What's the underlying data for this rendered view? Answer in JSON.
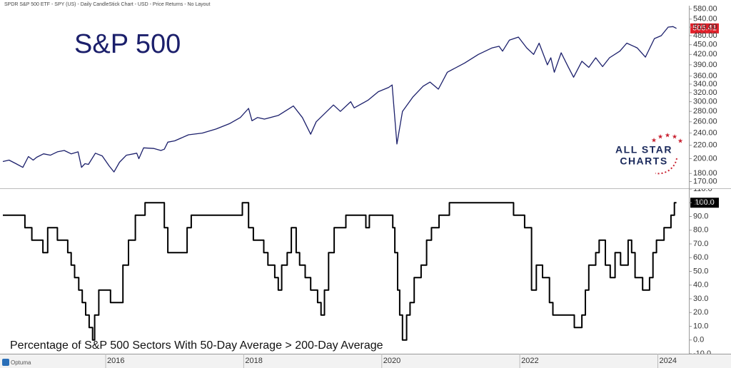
{
  "header": {
    "title": "SPDR S&P 500 ETF - SPY (US) - Daily CandleStick Chart - USD - Price Returns - No Layout"
  },
  "logo": {
    "line1": "ALL STAR",
    "line2": "CHARTS"
  },
  "footer": {
    "brand": "Optuma"
  },
  "chart_data": [
    {
      "type": "line",
      "annotation": "S&P 500",
      "log_scale": true,
      "color": "#1b1f6b",
      "xlim": [
        2014.51,
        2024.45
      ],
      "ylim": [
        162,
        594
      ],
      "yticks": [
        {
          "value": 170,
          "label": "170.00"
        },
        {
          "value": 180,
          "label": "180.00"
        },
        {
          "value": 200,
          "label": "200.00"
        },
        {
          "value": 220,
          "label": "220.00"
        },
        {
          "value": 240,
          "label": "240.00"
        },
        {
          "value": 260,
          "label": "260.00"
        },
        {
          "value": 280,
          "label": "280.00"
        },
        {
          "value": 300,
          "label": "300.00"
        },
        {
          "value": 320,
          "label": "320.00"
        },
        {
          "value": 340,
          "label": "340.00"
        },
        {
          "value": 360,
          "label": "360.00"
        },
        {
          "value": 390,
          "label": "390.00"
        },
        {
          "value": 420,
          "label": "420.00"
        },
        {
          "value": 450,
          "label": "450.00"
        },
        {
          "value": 480,
          "label": "480.00"
        },
        {
          "value": 510,
          "label": "510.00"
        },
        {
          "value": 540,
          "label": "540.00"
        },
        {
          "value": 580,
          "label": "580.00"
        }
      ],
      "x": [
        2014.51,
        2014.6,
        2014.7,
        2014.8,
        2014.88,
        2014.95,
        2015.0,
        2015.1,
        2015.2,
        2015.3,
        2015.4,
        2015.5,
        2015.6,
        2015.65,
        2015.7,
        2015.75,
        2015.85,
        2015.95,
        2016.05,
        2016.12,
        2016.2,
        2016.3,
        2016.45,
        2016.48,
        2016.55,
        2016.7,
        2016.8,
        2016.85,
        2016.9,
        2017.0,
        2017.2,
        2017.4,
        2017.6,
        2017.8,
        2017.95,
        2018.07,
        2018.12,
        2018.2,
        2018.3,
        2018.5,
        2018.72,
        2018.85,
        2018.97,
        2019.05,
        2019.3,
        2019.4,
        2019.55,
        2019.6,
        2019.8,
        2019.95,
        2020.1,
        2020.15,
        2020.22,
        2020.3,
        2020.45,
        2020.6,
        2020.7,
        2020.82,
        2020.95,
        2021.2,
        2021.4,
        2021.6,
        2021.7,
        2021.75,
        2021.85,
        2021.98,
        2022.1,
        2022.2,
        2022.28,
        2022.4,
        2022.45,
        2022.5,
        2022.6,
        2022.7,
        2022.78,
        2022.9,
        2023.0,
        2023.1,
        2023.2,
        2023.3,
        2023.45,
        2023.55,
        2023.7,
        2023.82,
        2023.95,
        2024.05,
        2024.15,
        2024.22,
        2024.27
      ],
      "values": [
        196,
        198,
        193,
        188,
        203,
        198,
        202,
        207,
        205,
        210,
        212,
        207,
        210,
        188,
        193,
        192,
        208,
        204,
        190,
        182,
        195,
        205,
        208,
        200,
        216,
        215,
        212,
        214,
        225,
        227,
        237,
        240,
        247,
        257,
        268,
        286,
        262,
        268,
        265,
        272,
        291,
        268,
        238,
        260,
        293,
        280,
        300,
        287,
        303,
        322,
        332,
        338,
        222,
        280,
        310,
        335,
        345,
        328,
        370,
        395,
        420,
        440,
        445,
        430,
        465,
        475,
        440,
        420,
        455,
        390,
        410,
        370,
        425,
        385,
        357,
        400,
        383,
        410,
        385,
        410,
        430,
        455,
        440,
        412,
        470,
        480,
        510,
        512,
        505.41
      ]
    },
    {
      "type": "step",
      "title": "Percentage of S&P 500 Sectors With 50-Day Average > 200-Day Average",
      "color": "#000000",
      "xlim": [
        2014.51,
        2024.45
      ],
      "ylim": [
        -10,
        110
      ],
      "xticks": [
        2016,
        2018,
        2020,
        2022,
        2024
      ],
      "yticks": [
        {
          "value": -10,
          "label": "-10.0"
        },
        {
          "value": 0,
          "label": "0.0"
        },
        {
          "value": 10,
          "label": "10.0"
        },
        {
          "value": 20,
          "label": "20.0"
        },
        {
          "value": 30,
          "label": "30.0"
        },
        {
          "value": 40,
          "label": "40.0"
        },
        {
          "value": 50,
          "label": "50.0"
        },
        {
          "value": 60,
          "label": "60.0"
        },
        {
          "value": 70,
          "label": "70.0"
        },
        {
          "value": 80,
          "label": "80.0"
        },
        {
          "value": 90,
          "label": "90.0"
        },
        {
          "value": 100,
          "label": "100.0"
        },
        {
          "value": 110,
          "label": "110.0"
        }
      ],
      "x": [
        2014.51,
        2014.83,
        2014.93,
        2015.09,
        2015.16,
        2015.3,
        2015.45,
        2015.5,
        2015.55,
        2015.61,
        2015.66,
        2015.71,
        2015.76,
        2015.81,
        2015.84,
        2015.9,
        2016.07,
        2016.25,
        2016.33,
        2016.43,
        2016.57,
        2016.85,
        2016.9,
        2017.18,
        2017.24,
        2017.98,
        2018.07,
        2018.14,
        2018.29,
        2018.35,
        2018.45,
        2018.5,
        2018.55,
        2018.63,
        2018.69,
        2018.76,
        2018.81,
        2018.89,
        2018.97,
        2019.07,
        2019.12,
        2019.17,
        2019.23,
        2019.31,
        2019.48,
        2019.77,
        2019.82,
        2020.16,
        2020.19,
        2020.23,
        2020.26,
        2020.3,
        2020.36,
        2020.41,
        2020.47,
        2020.57,
        2020.65,
        2020.72,
        2020.83,
        2020.98,
        2021.91,
        2022.07,
        2022.17,
        2022.24,
        2022.33,
        2022.43,
        2022.48,
        2022.79,
        2022.9,
        2022.95,
        2023.0,
        2023.1,
        2023.15,
        2023.24,
        2023.31,
        2023.38,
        2023.46,
        2023.57,
        2023.62,
        2023.67,
        2023.78,
        2023.88,
        2023.93,
        2023.98,
        2024.09,
        2024.19,
        2024.24,
        2024.27
      ],
      "values": [
        90.9,
        81.8,
        72.7,
        63.6,
        81.8,
        72.7,
        63.6,
        54.5,
        45.5,
        36.4,
        27.3,
        18.2,
        9.1,
        0,
        18.2,
        36.4,
        27.3,
        54.5,
        72.7,
        90.9,
        100,
        81.8,
        63.6,
        81.8,
        90.9,
        100,
        81.8,
        72.7,
        63.6,
        54.5,
        45.5,
        36.4,
        54.5,
        63.6,
        81.8,
        63.6,
        54.5,
        45.5,
        36.4,
        27.3,
        18.2,
        36.4,
        63.6,
        81.8,
        90.9,
        81.8,
        90.9,
        81.8,
        63.6,
        36.4,
        18.2,
        0,
        18.2,
        27.3,
        45.5,
        54.5,
        72.7,
        81.8,
        90.9,
        100,
        90.9,
        81.8,
        36.4,
        54.5,
        45.5,
        27.3,
        18.2,
        9.1,
        18.2,
        36.4,
        54.5,
        63.6,
        72.7,
        54.5,
        45.5,
        63.6,
        54.5,
        72.7,
        63.6,
        45.5,
        36.4,
        45.5,
        63.6,
        72.7,
        81.8,
        90.9,
        100,
        100
      ],
      "value_labels": [
        null,
        null,
        null,
        null,
        null,
        null,
        null,
        null,
        null,
        null,
        null,
        null,
        null,
        null,
        null,
        null,
        null,
        null,
        null,
        null,
        null,
        null,
        null,
        null,
        null,
        null,
        null,
        null,
        null,
        null,
        null,
        null,
        null,
        null,
        null,
        null,
        null,
        null,
        null,
        null,
        null,
        null,
        null,
        null,
        null,
        null,
        null,
        null,
        null,
        null,
        null,
        null,
        null,
        null,
        null,
        null,
        null,
        null,
        null,
        null,
        null,
        null,
        null,
        null,
        null,
        null,
        null,
        null,
        null,
        null,
        null,
        null,
        null,
        null,
        null,
        null,
        null,
        null,
        null,
        null,
        null,
        null,
        null,
        null,
        null,
        null,
        null,
        "100.0"
      ]
    }
  ]
}
